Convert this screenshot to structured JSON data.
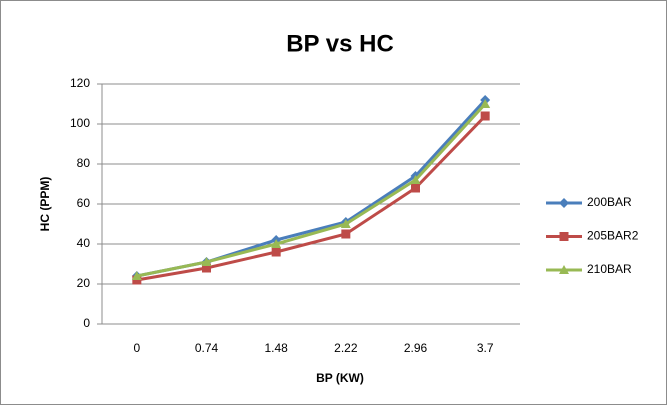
{
  "chart_data": {
    "type": "line",
    "title": "BP vs HC",
    "x_label": "BP (KW)",
    "y_label": "HC (PPM)",
    "categories": [
      "0",
      "0.74",
      "1.48",
      "2.22",
      "2.96",
      "3.7"
    ],
    "series": [
      {
        "name": "200BAR",
        "color": "#4a7ebb",
        "marker": "diamond",
        "values": [
          24,
          31,
          42,
          51,
          74,
          112
        ]
      },
      {
        "name": "205BAR2",
        "color": "#be4b48",
        "marker": "square",
        "values": [
          22,
          28,
          36,
          45,
          68,
          104
        ]
      },
      {
        "name": "210BAR",
        "color": "#98b954",
        "marker": "triangle",
        "values": [
          24,
          31,
          40,
          50,
          72,
          110
        ]
      }
    ],
    "ylim": [
      0,
      120
    ],
    "yticks": [
      0,
      20,
      40,
      60,
      80,
      100,
      120
    ],
    "grid": true,
    "legend": "right"
  }
}
